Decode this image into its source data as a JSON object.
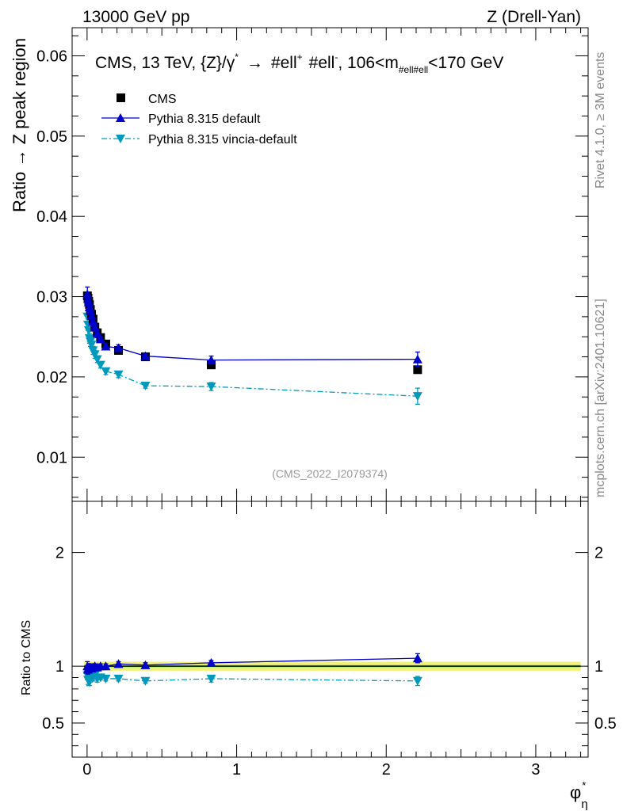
{
  "header": {
    "left": "13000 GeV pp",
    "right": "Z (Drell-Yan)"
  },
  "side_labels": {
    "rivet": "Rivet 4.1.0, ≥ 3M events",
    "mcplots": "mcplots.cern.ch [arXiv:2401.10621]"
  },
  "colors": {
    "cms": "#000000",
    "default": "#0000cc",
    "vincia": "#0099bb",
    "band_outer": "#f2f27a",
    "band_inner": "#b8f080"
  },
  "chart_data": [
    {
      "type": "scatter",
      "title": "CMS, 13 TeV, {Z}/γ* → #ell+ #ell-, 106<m#ell#ell<170 GeV",
      "title_parts": {
        "main": "CMS, 13 TeV, {Z}/γ",
        "star": "*",
        "arrow": "→",
        "ell1": "#ell",
        "plus": "+",
        "ell2": "#ell",
        "minus": "-",
        "mass_prefix": ", 106<m",
        "mass_sub": "#ell#ell",
        "mass_suffix": "<170 GeV"
      },
      "ylabel": "Ratio → Z peak region",
      "xlim": [
        -0.1,
        3.35
      ],
      "ylim": [
        0.0045,
        0.0635
      ],
      "yticks": [
        0.01,
        0.02,
        0.03,
        0.04,
        0.05,
        0.06
      ],
      "ytick_labels": [
        "0.01",
        "0.02",
        "0.03",
        "0.04",
        "0.05",
        "0.06"
      ],
      "watermark": "(CMS_2022_I2079374)",
      "legend_position": "top-left",
      "series": [
        {
          "name": "CMS",
          "marker": "square",
          "x": [
            0.002,
            0.006,
            0.011,
            0.016,
            0.022,
            0.03,
            0.04,
            0.052,
            0.068,
            0.09,
            0.125,
            0.21,
            0.39,
            0.83,
            2.21
          ],
          "y": [
            0.0301,
            0.0298,
            0.0294,
            0.029,
            0.0284,
            0.0278,
            0.0272,
            0.0262,
            0.0255,
            0.0249,
            0.0241,
            0.0233,
            0.0225,
            0.0215,
            0.0209
          ],
          "err": [
            0.0003,
            0.0003,
            0.0003,
            0.0003,
            0.0003,
            0.0003,
            0.0003,
            0.0003,
            0.0003,
            0.0003,
            0.0003,
            0.0003,
            0.0003,
            0.0003,
            0.0003
          ]
        },
        {
          "name": "Pythia 8.315 default",
          "marker": "triangle-up",
          "line": "solid",
          "x": [
            0.002,
            0.006,
            0.011,
            0.016,
            0.022,
            0.03,
            0.04,
            0.052,
            0.068,
            0.09,
            0.125,
            0.21,
            0.39,
            0.83,
            2.21
          ],
          "y": [
            0.0303,
            0.0297,
            0.0293,
            0.0287,
            0.0282,
            0.0276,
            0.0269,
            0.0262,
            0.0254,
            0.0247,
            0.0238,
            0.0236,
            0.0226,
            0.0221,
            0.0222
          ],
          "err": [
            0.0009,
            0.0008,
            0.0008,
            0.0007,
            0.0007,
            0.0006,
            0.0006,
            0.0005,
            0.0005,
            0.0004,
            0.0004,
            0.0004,
            0.0003,
            0.0005,
            0.0009
          ]
        },
        {
          "name": "Pythia 8.315 vincia-default",
          "marker": "triangle-down",
          "line": "dashdot",
          "x": [
            0.002,
            0.006,
            0.011,
            0.016,
            0.022,
            0.03,
            0.04,
            0.052,
            0.068,
            0.09,
            0.125,
            0.21,
            0.39,
            0.83,
            2.21
          ],
          "y": [
            0.0275,
            0.0265,
            0.0258,
            0.0248,
            0.0244,
            0.024,
            0.0233,
            0.0228,
            0.0222,
            0.0215,
            0.0207,
            0.0203,
            0.0189,
            0.0188,
            0.0176
          ],
          "err": [
            0.0008,
            0.0007,
            0.0007,
            0.0006,
            0.0006,
            0.0005,
            0.0005,
            0.0005,
            0.0004,
            0.0004,
            0.0004,
            0.0004,
            0.0003,
            0.0005,
            0.001
          ]
        }
      ]
    },
    {
      "type": "scatter",
      "ylabel": "Ratio to CMS",
      "xlabel": "φ*η",
      "xlabel_parts": {
        "main": "φ",
        "star": "*",
        "sub": "η"
      },
      "xlim": [
        -0.1,
        3.35
      ],
      "ylim": [
        0.2,
        2.45
      ],
      "yticks": [
        0.5,
        1,
        2
      ],
      "ytick_labels": [
        "0.5",
        "1",
        "2"
      ],
      "xticks": [
        0,
        1,
        2,
        3
      ],
      "xtick_labels": [
        "0",
        "1",
        "2",
        "3"
      ],
      "band": {
        "lo": 0.96,
        "hi": 1.04,
        "inner_lo": 0.985,
        "inner_hi": 1.015
      },
      "series": [
        {
          "name": "Pythia 8.315 default",
          "x": [
            0.002,
            0.006,
            0.011,
            0.016,
            0.022,
            0.03,
            0.04,
            0.052,
            0.068,
            0.09,
            0.125,
            0.21,
            0.39,
            0.83,
            2.21
          ],
          "y": [
            1.0,
            0.97,
            0.99,
            0.99,
            0.99,
            0.98,
            0.99,
            1.0,
            0.99,
            1.0,
            1.0,
            1.02,
            1.01,
            1.03,
            1.07
          ],
          "err": [
            0.04,
            0.04,
            0.03,
            0.03,
            0.03,
            0.03,
            0.03,
            0.02,
            0.02,
            0.02,
            0.02,
            0.02,
            0.02,
            0.02,
            0.04
          ]
        },
        {
          "name": "Pythia 8.315 vincia-default",
          "x": [
            0.002,
            0.006,
            0.011,
            0.016,
            0.022,
            0.03,
            0.04,
            0.052,
            0.068,
            0.09,
            0.125,
            0.21,
            0.39,
            0.83,
            2.21
          ],
          "y": [
            0.92,
            0.88,
            0.87,
            0.86,
            0.89,
            0.91,
            0.9,
            0.92,
            0.89,
            0.9,
            0.89,
            0.89,
            0.87,
            0.89,
            0.87
          ],
          "err": [
            0.04,
            0.04,
            0.04,
            0.03,
            0.03,
            0.03,
            0.03,
            0.03,
            0.03,
            0.02,
            0.02,
            0.02,
            0.02,
            0.03,
            0.04
          ]
        }
      ]
    }
  ]
}
